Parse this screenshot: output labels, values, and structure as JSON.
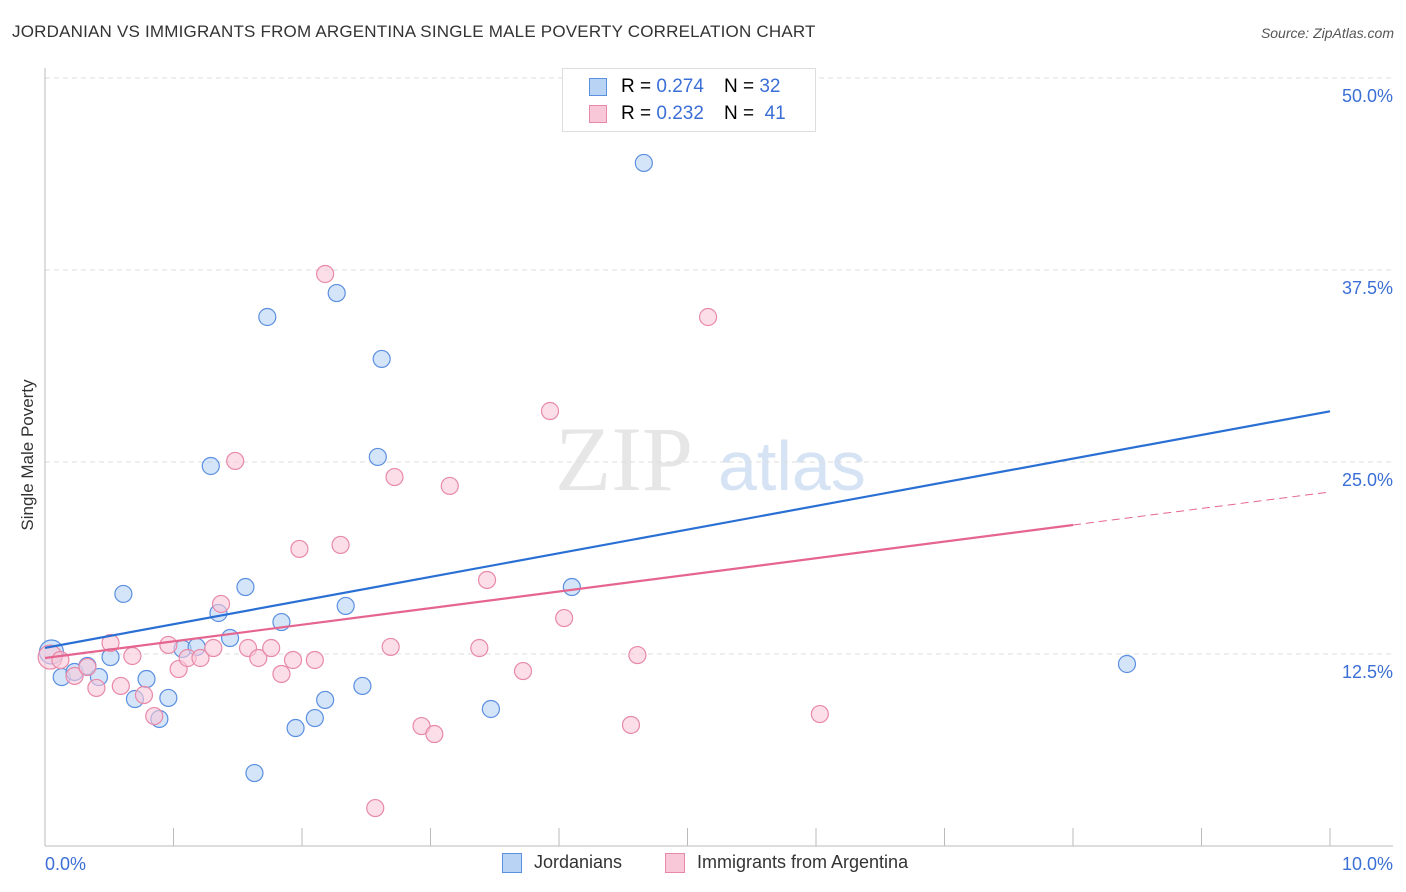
{
  "chart_data": {
    "type": "scatter",
    "title": "JORDANIAN VS IMMIGRANTS FROM ARGENTINA SINGLE MALE POVERTY CORRELATION CHART",
    "source": "Source: ZipAtlas.com",
    "xlabel": "",
    "ylabel": "Single Male Poverty",
    "xlim": [
      0,
      10
    ],
    "ylim": [
      0,
      50
    ],
    "x_tick_labels": [
      "0.0%",
      "10.0%"
    ],
    "y_tick_labels": [
      "12.5%",
      "25.0%",
      "37.5%",
      "50.0%"
    ],
    "y_ticks": [
      12.5,
      25,
      37.5,
      50
    ],
    "watermark": "ZIPatlas",
    "legend": [
      {
        "r_label": "R = ",
        "r": "0.274",
        "n_label": "N = ",
        "n": "32"
      },
      {
        "r_label": "R = ",
        "r": "0.232",
        "n_label": "N = ",
        "n": "41"
      }
    ],
    "series": [
      {
        "name": "Jordanians",
        "color": "#5b8fe0",
        "fill": "#b9d3f5",
        "trend": {
          "x": [
            0,
            10
          ],
          "y": [
            12.9,
            28.3
          ],
          "color": "#2a70d4"
        },
        "points": [
          [
            0.05,
            12.63
          ],
          [
            0.13,
            11.0
          ],
          [
            0.23,
            11.33
          ],
          [
            0.33,
            11.72
          ],
          [
            0.42,
            11.0
          ],
          [
            0.51,
            12.3
          ],
          [
            0.61,
            16.41
          ],
          [
            0.7,
            9.57
          ],
          [
            0.79,
            10.87
          ],
          [
            0.89,
            8.27
          ],
          [
            0.96,
            9.64
          ],
          [
            1.07,
            12.83
          ],
          [
            1.18,
            12.96
          ],
          [
            1.29,
            24.74
          ],
          [
            1.35,
            15.17
          ],
          [
            1.44,
            13.54
          ],
          [
            1.56,
            16.86
          ],
          [
            1.63,
            4.75
          ],
          [
            1.73,
            34.44
          ],
          [
            1.84,
            14.58
          ],
          [
            1.95,
            7.68
          ],
          [
            2.1,
            8.33
          ],
          [
            2.18,
            9.51
          ],
          [
            2.27,
            36.0
          ],
          [
            2.34,
            15.63
          ],
          [
            2.47,
            10.42
          ],
          [
            2.59,
            25.33
          ],
          [
            2.62,
            31.71
          ],
          [
            3.47,
            8.92
          ],
          [
            4.1,
            16.86
          ],
          [
            4.66,
            44.47
          ],
          [
            8.42,
            11.85
          ]
        ]
      },
      {
        "name": "Immigrants from Argentina",
        "color": "#e889a8",
        "fill": "#f8c8d8",
        "trend": {
          "x": [
            0,
            8.0
          ],
          "y": [
            12.24,
            20.9
          ],
          "dashed_to": [
            10,
            23.05
          ],
          "color": "#e5658f"
        },
        "points": [
          [
            0.04,
            12.3
          ],
          [
            0.12,
            12.11
          ],
          [
            0.23,
            11.07
          ],
          [
            0.33,
            11.65
          ],
          [
            0.4,
            10.29
          ],
          [
            0.51,
            13.22
          ],
          [
            0.59,
            10.42
          ],
          [
            0.68,
            12.37
          ],
          [
            0.77,
            9.83
          ],
          [
            0.85,
            8.46
          ],
          [
            0.96,
            13.09
          ],
          [
            1.04,
            11.52
          ],
          [
            1.11,
            12.24
          ],
          [
            1.21,
            12.24
          ],
          [
            1.31,
            12.89
          ],
          [
            1.37,
            15.76
          ],
          [
            1.48,
            25.07
          ],
          [
            1.58,
            12.89
          ],
          [
            1.66,
            12.24
          ],
          [
            1.76,
            12.89
          ],
          [
            1.84,
            11.2
          ],
          [
            1.93,
            12.11
          ],
          [
            1.98,
            19.34
          ],
          [
            2.1,
            12.11
          ],
          [
            2.18,
            37.24
          ],
          [
            2.3,
            19.6
          ],
          [
            2.69,
            12.96
          ],
          [
            2.72,
            24.02
          ],
          [
            2.93,
            7.81
          ],
          [
            3.03,
            7.29
          ],
          [
            3.15,
            23.44
          ],
          [
            3.38,
            12.89
          ],
          [
            3.44,
            17.32
          ],
          [
            3.72,
            11.39
          ],
          [
            3.93,
            28.32
          ],
          [
            4.04,
            14.84
          ],
          [
            4.56,
            7.88
          ],
          [
            4.61,
            12.43
          ],
          [
            5.16,
            34.44
          ],
          [
            6.03,
            8.59
          ],
          [
            2.57,
            2.47
          ]
        ]
      }
    ]
  }
}
